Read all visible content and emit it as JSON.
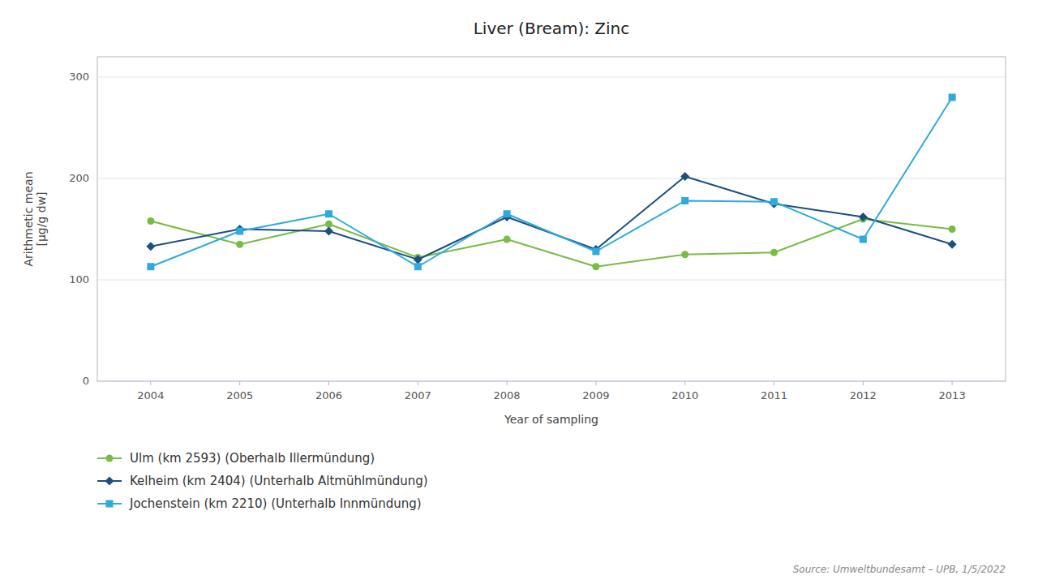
{
  "chart_data": {
    "type": "line",
    "title": "Liver (Bream): Zinc",
    "xlabel": "Year of sampling",
    "ylabel": "Arithmetic mean\n[µg/g dw]",
    "x": [
      2004,
      2005,
      2006,
      2007,
      2008,
      2009,
      2010,
      2011,
      2012,
      2013
    ],
    "series": [
      {
        "name": "Ulm (km 2593) (Oberhalb Illermündung)",
        "color": "#77bc43",
        "marker": "circle",
        "values": [
          158,
          135,
          155,
          122,
          140,
          113,
          125,
          127,
          160,
          150
        ]
      },
      {
        "name": "Kelheim (km 2404) (Unterhalb Altmühlmündung)",
        "color": "#1c4f82",
        "marker": "diamond",
        "values": [
          133,
          150,
          148,
          120,
          162,
          130,
          202,
          175,
          162,
          135
        ]
      },
      {
        "name": "Jochenstein (km 2210) (Unterhalb Innmündung)",
        "color": "#2eaadc",
        "marker": "square",
        "values": [
          113,
          148,
          165,
          113,
          165,
          128,
          178,
          177,
          140,
          280
        ]
      }
    ],
    "xlim": [
      2003.4,
      2013.6
    ],
    "xticks": [
      2004,
      2005,
      2006,
      2007,
      2008,
      2009,
      2010,
      2011,
      2012,
      2013
    ],
    "ylim": [
      0,
      320
    ],
    "yticks": [
      0,
      100,
      200,
      300
    ],
    "grid": true,
    "legend": "bottom-left",
    "annotations": [
      "Source: Umweltbundesamt – UPB, 1/5/2022"
    ]
  }
}
